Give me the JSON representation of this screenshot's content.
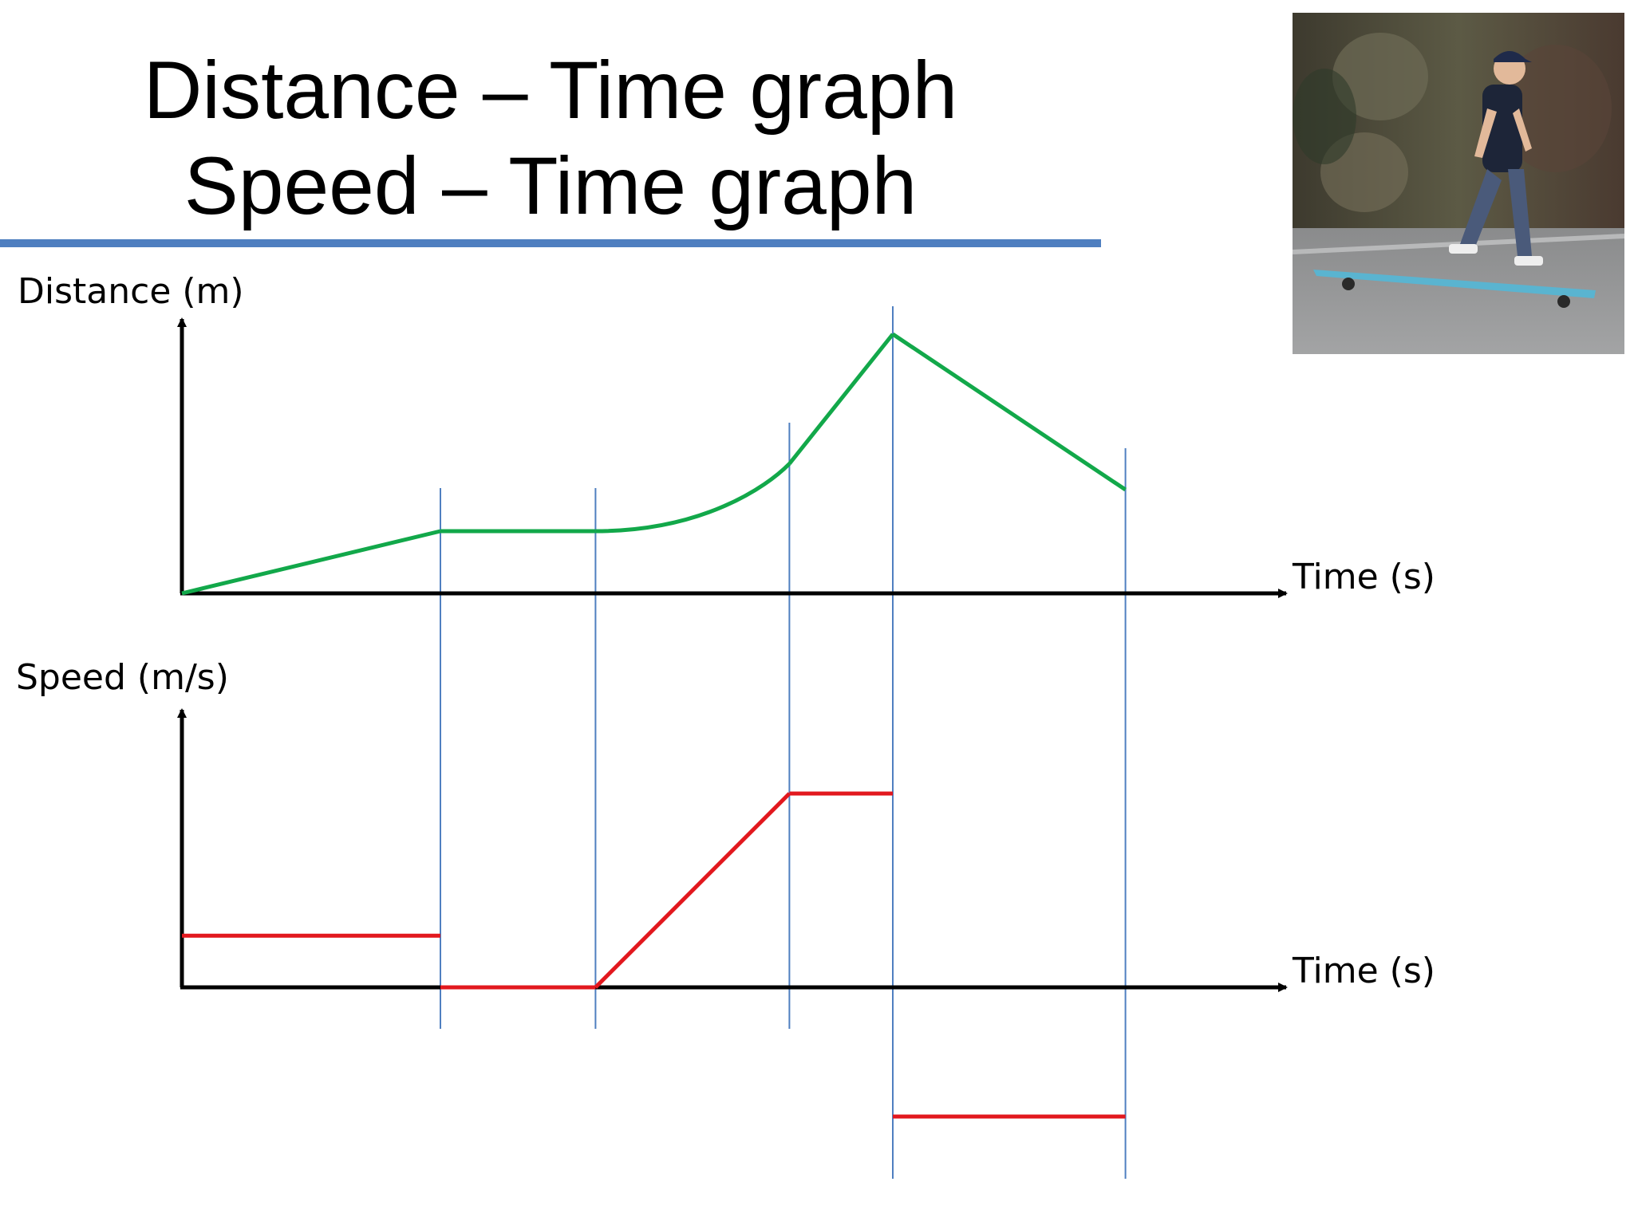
{
  "slide": {
    "title_line1": "Distance – Time graph",
    "title_line2": "Speed – Time graph",
    "rule_color": "#4f7fc0",
    "photo_icon": "skateboarder-photo"
  },
  "chart_data": [
    {
      "type": "line",
      "title": "",
      "ylabel": "Distance (m)",
      "xlabel": "Time (s)",
      "line_color": "#12a84a",
      "grid": false,
      "x": [
        0,
        1,
        1.6,
        2.35,
        2.75,
        3.65
      ],
      "segments": [
        {
          "shape": "linear",
          "points": [
            [
              0,
              0
            ],
            [
              1,
              0.24
            ]
          ]
        },
        {
          "shape": "linear",
          "points": [
            [
              1,
              0.24
            ],
            [
              1.6,
              0.24
            ]
          ]
        },
        {
          "shape": "curve",
          "points": [
            [
              1.6,
              0.24
            ],
            [
              2.35,
              0.5
            ]
          ]
        },
        {
          "shape": "linear",
          "points": [
            [
              2.35,
              0.5
            ],
            [
              2.75,
              1.0
            ]
          ]
        },
        {
          "shape": "linear",
          "points": [
            [
              2.75,
              1.0
            ],
            [
              3.65,
              0.4
            ]
          ]
        }
      ]
    },
    {
      "type": "line",
      "title": "",
      "ylabel": "Speed (m/s)",
      "xlabel": "Time (s)",
      "line_color": "#e2181e",
      "grid": false,
      "segments": [
        {
          "shape": "linear",
          "points": [
            [
              0,
              0.2
            ],
            [
              1,
              0.2
            ]
          ]
        },
        {
          "shape": "linear",
          "points": [
            [
              1,
              0
            ],
            [
              1.6,
              0
            ]
          ]
        },
        {
          "shape": "linear",
          "points": [
            [
              1.6,
              0
            ],
            [
              2.35,
              0.75
            ]
          ]
        },
        {
          "shape": "linear",
          "points": [
            [
              2.35,
              0.75
            ],
            [
              2.75,
              0.75
            ]
          ]
        },
        {
          "shape": "linear",
          "points": [
            [
              2.75,
              -0.5
            ],
            [
              3.65,
              -0.5
            ]
          ]
        }
      ]
    }
  ],
  "divider_times": [
    1,
    1.6,
    2.35,
    2.75,
    3.65
  ],
  "divider_color": "#4f7fc0"
}
